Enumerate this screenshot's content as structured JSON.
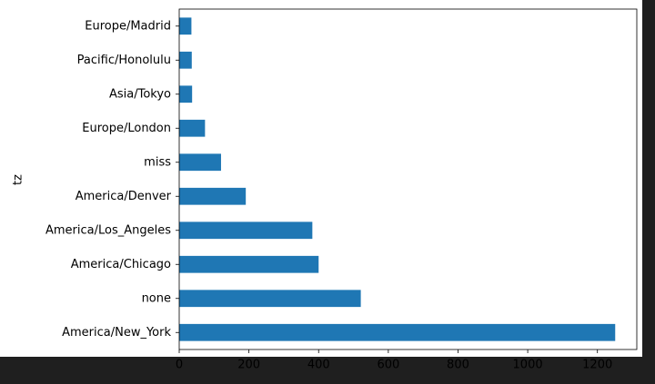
{
  "chart_data": {
    "type": "barh",
    "y_label": "tz",
    "categories": [
      "America/New_York",
      "none",
      "America/Chicago",
      "America/Los_Angeles",
      "America/Denver",
      "miss",
      "Europe/London",
      "Asia/Tokyo",
      "Pacific/Honolulu",
      "Europe/Madrid"
    ],
    "values": [
      1251,
      521,
      400,
      382,
      191,
      120,
      74,
      37,
      36,
      35
    ],
    "color": "#1f77b4",
    "xlim": [
      0,
      1313
    ],
    "xticks": [
      0,
      200,
      400,
      600,
      800,
      1000,
      1200
    ]
  }
}
